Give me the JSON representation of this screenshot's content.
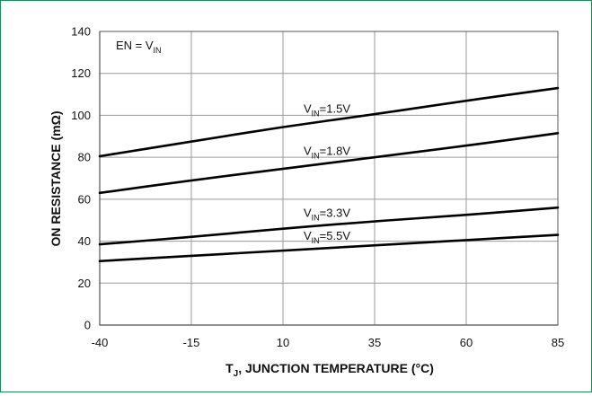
{
  "chart_data": {
    "type": "line",
    "xlabel": "JUNCTION TEMPERATURE (°C)",
    "xlabel_prefix": "T",
    "xlabel_prefix_sub": "J",
    "xlabel_prefix_sep": ", ",
    "ylabel": "ON RESISTANCE (mΩ)",
    "xlim": [
      -40,
      85
    ],
    "ylim": [
      0,
      140
    ],
    "x_ticks": [
      -40,
      -15,
      10,
      35,
      60,
      85
    ],
    "y_ticks": [
      0,
      20,
      40,
      60,
      80,
      100,
      120,
      140
    ],
    "grid": true,
    "annotation": {
      "main": "EN = V",
      "sub": "IN"
    },
    "series": [
      {
        "label_main": "V",
        "label_sub": "IN",
        "label_suffix": "=1.5V",
        "x": [
          -40,
          -15,
          10,
          35,
          60,
          85
        ],
        "values": [
          80.5,
          87.5,
          94.5,
          100.5,
          107,
          113
        ]
      },
      {
        "label_main": "V",
        "label_sub": "IN",
        "label_suffix": "=1.8V",
        "x": [
          -40,
          -15,
          10,
          35,
          60,
          85
        ],
        "values": [
          63,
          69,
          74.5,
          80,
          85.5,
          91.5
        ]
      },
      {
        "label_main": "V",
        "label_sub": "IN",
        "label_suffix": "=3.3V",
        "x": [
          -40,
          -15,
          10,
          35,
          60,
          85
        ],
        "values": [
          38.5,
          42,
          46,
          49.5,
          52.5,
          56
        ]
      },
      {
        "label_main": "V",
        "label_sub": "IN",
        "label_suffix": "=5.5V",
        "x": [
          -40,
          -15,
          10,
          35,
          60,
          85
        ],
        "values": [
          30.5,
          33,
          35.5,
          38,
          40.5,
          43
        ]
      }
    ]
  }
}
